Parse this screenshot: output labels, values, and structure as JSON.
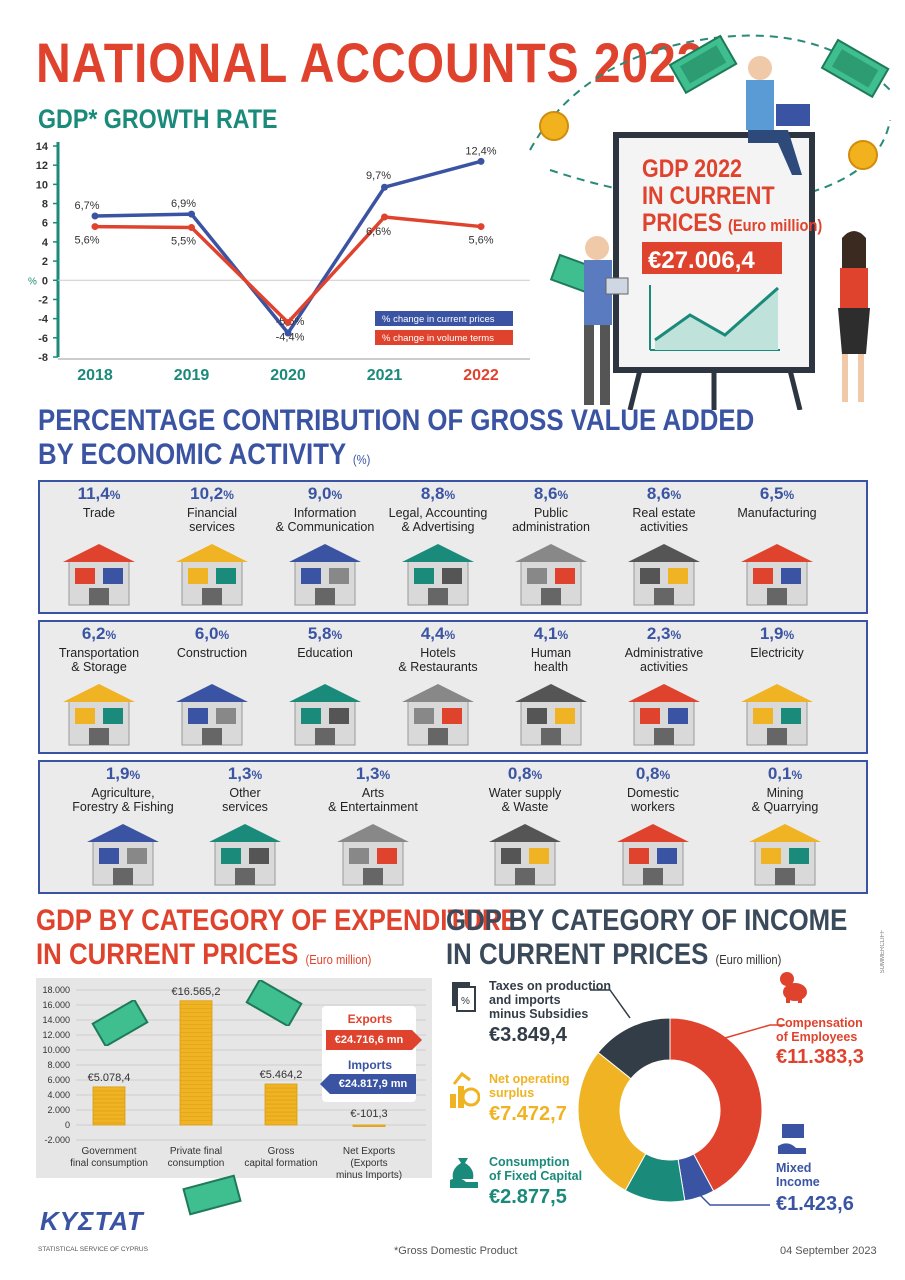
{
  "header": {
    "title": "NATIONAL ACCOUNTS 2022",
    "growth_title": "GDP* GROWTH RATE",
    "gdp_box_title_1": "GDP 2022",
    "gdp_box_title_2": "IN CURRENT",
    "gdp_box_title_3": "PRICES",
    "gdp_box_unit": "(Euro million)",
    "gdp_box_value": "€27.006,4"
  },
  "contribution": {
    "title_1": "PERCENTAGE CONTRIBUTION OF GROSS VALUE ADDED",
    "title_2": "BY ECONOMIC ACTIVITY",
    "unit": "(%)",
    "items": [
      {
        "value": "11,4",
        "label1": "Trade",
        "label2": "",
        "icon": "shop-icon"
      },
      {
        "value": "10,2",
        "label1": "Financial",
        "label2": "services",
        "icon": "money-bag-icon"
      },
      {
        "value": "9,0",
        "label1": "Information",
        "label2": "& Communication",
        "icon": "antenna-tower-icon"
      },
      {
        "value": "8,8",
        "label1": "Legal, Accounting",
        "label2": "& Advertising",
        "icon": "scales-icon"
      },
      {
        "value": "8,6",
        "label1": "Public",
        "label2": "administration",
        "icon": "government-building-icon"
      },
      {
        "value": "8,6",
        "label1": "Real estate",
        "label2": "activities",
        "icon": "house-icon"
      },
      {
        "value": "6,5",
        "label1": "Manufacturing",
        "label2": "",
        "icon": "robot-arm-icon"
      },
      {
        "value": "6,2",
        "label1": "Transportation",
        "label2": "& Storage",
        "icon": "ship-truck-icon"
      },
      {
        "value": "6,0",
        "label1": "Construction",
        "label2": "",
        "icon": "crane-icon"
      },
      {
        "value": "5,8",
        "label1": "Education",
        "label2": "",
        "icon": "books-icon"
      },
      {
        "value": "4,4",
        "label1": "Hotels",
        "label2": "& Restaurants",
        "icon": "hotel-icon"
      },
      {
        "value": "4,1",
        "label1": "Human",
        "label2": "health",
        "icon": "hospital-icon"
      },
      {
        "value": "2,3",
        "label1": "Administrative",
        "label2": "activities",
        "icon": "meeting-icon"
      },
      {
        "value": "1,9",
        "label1": "Electricity",
        "label2": "",
        "icon": "power-pylon-icon"
      },
      {
        "value": "1,9",
        "label1": "Agriculture,",
        "label2": "Forestry & Fishing",
        "icon": "tractor-icon"
      },
      {
        "value": "1,3",
        "label1": "Other",
        "label2": "services",
        "icon": "hairdryer-scissors-icon"
      },
      {
        "value": "1,3",
        "label1": "Arts",
        "label2": "& Entertainment",
        "icon": "camera-gamepad-icon"
      },
      {
        "value": "0,8",
        "label1": "Water supply",
        "label2": "& Waste",
        "icon": "factory-icon"
      },
      {
        "value": "0,8",
        "label1": "Domestic",
        "label2": "workers",
        "icon": "vacuum-icon"
      },
      {
        "value": "0,1",
        "label1": "Mining",
        "label2": "& Quarrying",
        "icon": "dump-truck-icon"
      }
    ],
    "pct_sign": "%"
  },
  "expenditure": {
    "title_1": "GDP BY CATEGORY OF EXPENDITURE",
    "title_2": "IN CURRENT PRICES",
    "unit": "(Euro million)",
    "exports_label": "Exports",
    "exports_value": "€24.716,6 mn",
    "imports_label": "Imports",
    "imports_value": "€24.817,9 mn"
  },
  "income": {
    "title_1": "GDP BY CATEGORY OF INCOME",
    "title_2": "IN CURRENT PRICES",
    "unit": "(Euro million)",
    "taxes_label_1": "Taxes on production",
    "taxes_label_2": "and imports",
    "taxes_label_3": "minus Subsidies",
    "taxes_value": "€3.849,4",
    "nos_label_1": "Net operating",
    "nos_label_2": "surplus",
    "nos_value": "€7.472,7",
    "cfc_label_1": "Consumption",
    "cfc_label_2": "of Fixed Capital",
    "cfc_value": "€2.877,5",
    "comp_label_1": "Compensation",
    "comp_label_2": "of Employees",
    "comp_value": "€11.383,3",
    "mixed_label_1": "Mixed",
    "mixed_label_2": "Income",
    "mixed_value": "€1.423,6"
  },
  "footer": {
    "logo": "ΚΥΣΤΑΤ",
    "org": "STATISTICAL SERVICE OF CYPRUS",
    "note": "*Gross Domestic Product",
    "date": "04 September 2023",
    "credit": "SUMMERCLIFF"
  },
  "colors": {
    "red": "#e0432d",
    "blue": "#3a54a3",
    "teal": "#1a8a7a",
    "yellow": "#f0b323",
    "dark": "#333d47"
  },
  "chart_data": [
    {
      "type": "line",
      "title": "GDP* GROWTH RATE",
      "ylabel": "%",
      "ylim": [
        -8,
        14
      ],
      "yticks": [
        14,
        12,
        10,
        8,
        6,
        4,
        2,
        0,
        -2,
        -4,
        -6,
        -8
      ],
      "categories": [
        "2018",
        "2019",
        "2020",
        "2021",
        "2022"
      ],
      "series": [
        {
          "name": "% change in current prices",
          "color": "#3a54a3",
          "values": [
            6.7,
            6.9,
            -5.5,
            9.7,
            12.4
          ],
          "labels": [
            "6,7%",
            "6,9%",
            "-5,5%",
            "9,7%",
            "12,4%"
          ]
        },
        {
          "name": "% change in volume terms",
          "color": "#e0432d",
          "values": [
            5.6,
            5.5,
            -4.4,
            6.6,
            5.6
          ],
          "labels": [
            "5,6%",
            "5,5%",
            "-4,4%",
            "6,6%",
            "5,6%"
          ]
        }
      ],
      "legend": "bottom-right"
    },
    {
      "type": "bar",
      "title": "GDP BY CATEGORY OF EXPENDITURE IN CURRENT PRICES",
      "ylim": [
        -2000,
        18000
      ],
      "yticks": [
        "18.000",
        "16.000",
        "14.000",
        "12.000",
        "10.000",
        "8.000",
        "6.000",
        "4.000",
        "2.000",
        "0",
        "-2.000"
      ],
      "ytick_values": [
        18000,
        16000,
        14000,
        12000,
        10000,
        8000,
        6000,
        4000,
        2000,
        0,
        -2000
      ],
      "categories": [
        [
          "Government",
          "final consumption"
        ],
        [
          "Private final",
          "consumption"
        ],
        [
          "Gross",
          "capital formation"
        ],
        [
          "Net Exports",
          "(Exports",
          "minus Imports)"
        ]
      ],
      "values": [
        5078.4,
        16565.2,
        5464.2,
        -101.3
      ],
      "labels": [
        "€5.078,4",
        "€16.565,2",
        "€5.464,2",
        "€-101,3"
      ]
    },
    {
      "type": "pie",
      "title": "GDP BY CATEGORY OF INCOME IN CURRENT PRICES",
      "categories": [
        "Compensation of Employees",
        "Mixed Income",
        "Consumption of Fixed Capital",
        "Net operating surplus",
        "Taxes on production and imports minus Subsidies"
      ],
      "values": [
        11383.3,
        1423.6,
        2877.5,
        7472.7,
        3849.4
      ],
      "colors": [
        "#e0432d",
        "#3a54a3",
        "#1a8a7a",
        "#f0b323",
        "#333d47"
      ]
    }
  ]
}
